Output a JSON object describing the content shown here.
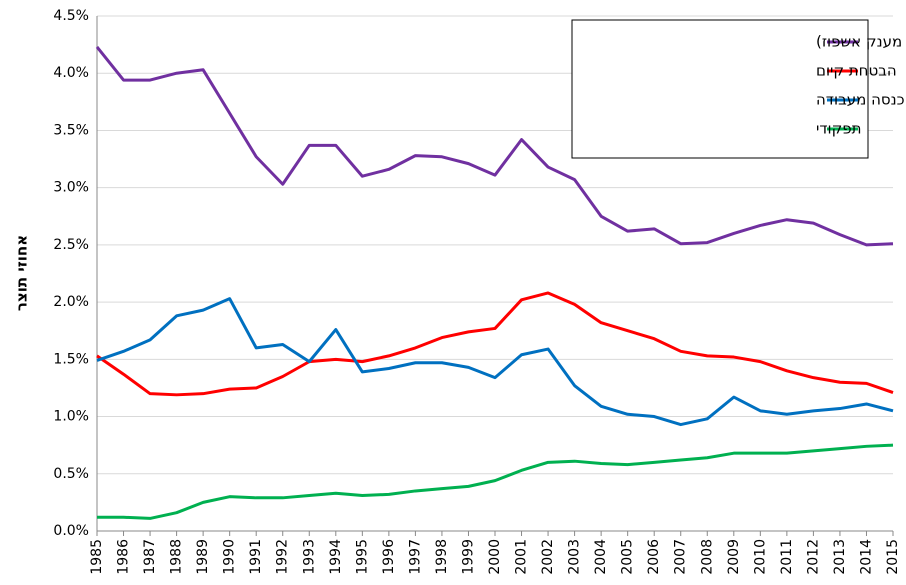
{
  "chart_data": {
    "type": "line",
    "y_label": "אחוזי תוצר",
    "x": [
      1985,
      1986,
      1987,
      1988,
      1989,
      1990,
      1991,
      1992,
      1993,
      1994,
      1995,
      1996,
      1997,
      1998,
      1999,
      2000,
      2001,
      2002,
      2003,
      2004,
      2005,
      2006,
      2007,
      2008,
      2009,
      2010,
      2011,
      2012,
      2013,
      2014,
      2015
    ],
    "xlim": [
      1985,
      2015
    ],
    "xticks": [
      1985,
      1986,
      1987,
      1988,
      1989,
      1990,
      1991,
      1992,
      1993,
      1994,
      1995,
      1996,
      1997,
      1998,
      1999,
      2000,
      2001,
      2002,
      2003,
      2004,
      2005,
      2006,
      2007,
      2008,
      2009,
      2010,
      2011,
      2012,
      2013,
      2014,
      2015
    ],
    "ylim": [
      0,
      4.5
    ],
    "yticks": [
      {
        "value": 0,
        "label": "0.0%"
      },
      {
        "value": 0.5,
        "label": "0.5%"
      },
      {
        "value": 1,
        "label": "1.0%"
      },
      {
        "value": 1.5,
        "label": "1.5%"
      },
      {
        "value": 2,
        "label": "2.0%"
      },
      {
        "value": 2.5,
        "label": "2.5%"
      },
      {
        "value": 3,
        "label": "3.0%"
      },
      {
        "value": 3.5,
        "label": "3.5%"
      },
      {
        "value": 4,
        "label": "4.0%"
      },
      {
        "value": 4.5,
        "label": "4.5%"
      }
    ],
    "grid": true,
    "legend": "top-right",
    "series": [
      {
        "name": "אוניברסלי (ללא מענק אשפוז)",
        "color": "#7030a0",
        "values": [
          4.23,
          3.94,
          3.94,
          4.0,
          4.03,
          3.65,
          3.27,
          3.03,
          3.37,
          3.37,
          3.1,
          3.16,
          3.28,
          3.27,
          3.21,
          3.11,
          3.42,
          3.18,
          3.07,
          2.75,
          2.62,
          2.64,
          2.51,
          2.52,
          2.6,
          2.67,
          2.72,
          2.69,
          2.59,
          2.5,
          2.51
        ]
      },
      {
        "name": "הבטחת קיום",
        "color": "#ff0000",
        "values": [
          1.53,
          1.37,
          1.2,
          1.19,
          1.2,
          1.24,
          1.25,
          1.35,
          1.48,
          1.5,
          1.48,
          1.53,
          1.6,
          1.69,
          1.74,
          1.77,
          2.02,
          2.08,
          1.98,
          1.82,
          1.75,
          1.68,
          1.57,
          1.53,
          1.52,
          1.48,
          1.4,
          1.34,
          1.3,
          1.29,
          1.21
        ]
      },
      {
        "name": "מחליף הכנסה מעבודה",
        "color": "#0070c0",
        "values": [
          1.49,
          1.57,
          1.67,
          1.88,
          1.93,
          2.03,
          1.6,
          1.63,
          1.48,
          1.76,
          1.39,
          1.42,
          1.47,
          1.47,
          1.43,
          1.34,
          1.54,
          1.59,
          1.27,
          1.09,
          1.02,
          1.0,
          0.93,
          0.98,
          1.17,
          1.05,
          1.02,
          1.05,
          1.07,
          1.11,
          1.05
        ]
      },
      {
        "name": "תפקודי",
        "color": "#00b050",
        "values": [
          0.12,
          0.12,
          0.11,
          0.16,
          0.25,
          0.3,
          0.29,
          0.29,
          0.31,
          0.33,
          0.31,
          0.32,
          0.35,
          0.37,
          0.39,
          0.44,
          0.53,
          0.6,
          0.61,
          0.59,
          0.58,
          0.6,
          0.62,
          0.64,
          0.68,
          0.68,
          0.68,
          0.7,
          0.72,
          0.74,
          0.75
        ]
      }
    ]
  }
}
